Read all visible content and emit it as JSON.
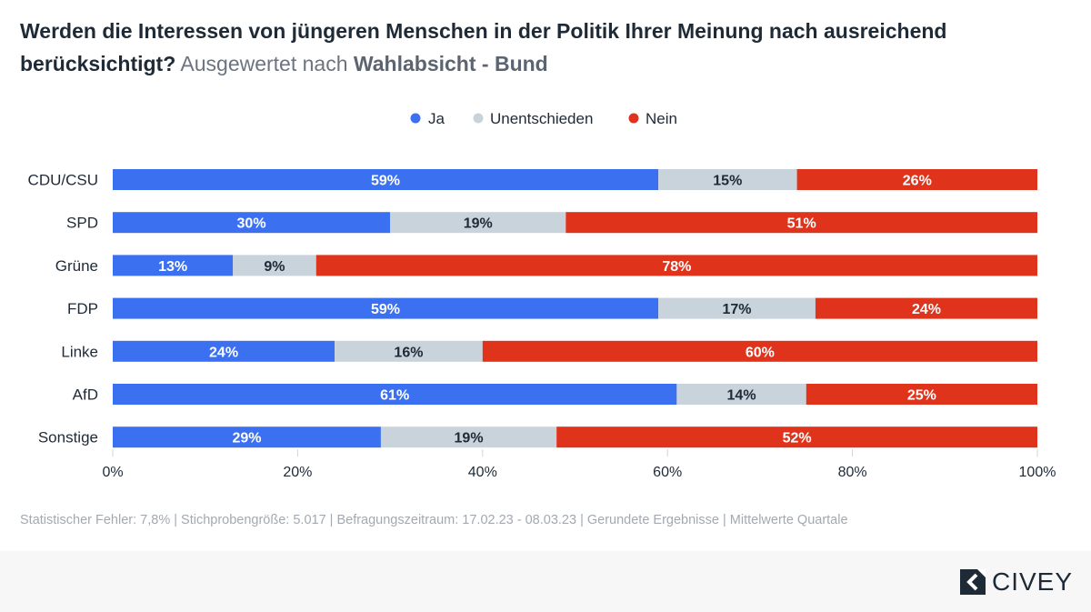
{
  "header": {
    "question": "Werden die Interessen von jüngeren Menschen in der Politik Ihrer Meinung nach ausreichend berücksichtigt?",
    "sub_prefix": "Ausgewertet nach",
    "sub_strong": "Wahlabsicht - Bund"
  },
  "chart_data": {
    "type": "bar",
    "orientation": "horizontal",
    "stacked": true,
    "categories": [
      "CDU/CSU",
      "SPD",
      "Grüne",
      "FDP",
      "Linke",
      "AfD",
      "Sonstige"
    ],
    "series": [
      {
        "name": "Ja",
        "color": "#3b71f1",
        "label_color": "#ffffff",
        "values": [
          59,
          30,
          13,
          59,
          24,
          61,
          29
        ]
      },
      {
        "name": "Unentschieden",
        "color": "#c8d3dc",
        "label_color": "#1f2a37",
        "values": [
          15,
          19,
          9,
          17,
          16,
          14,
          19
        ]
      },
      {
        "name": "Nein",
        "color": "#e0331b",
        "label_color": "#ffffff",
        "values": [
          26,
          51,
          78,
          24,
          60,
          25,
          52
        ]
      }
    ],
    "xlim": [
      0,
      100
    ],
    "xticks": [
      0,
      20,
      40,
      60,
      80,
      100
    ],
    "tick_labels": [
      "0%",
      "20%",
      "40%",
      "60%",
      "80%",
      "100%"
    ],
    "value_suffix": "%",
    "legend_position": "top-center"
  },
  "footer": {
    "note": "Statistischer Fehler: 7,8% | Stichprobengröße: 5.017 | Befragungszeitraum: 17.02.23 - 08.03.23 | Gerundete Ergebnisse | Mittelwerte Quartale",
    "brand": "CIVEY"
  },
  "colors": {
    "text": "#1f2a37",
    "axis": "#cfd5db",
    "muted": "#a3a9b0"
  }
}
